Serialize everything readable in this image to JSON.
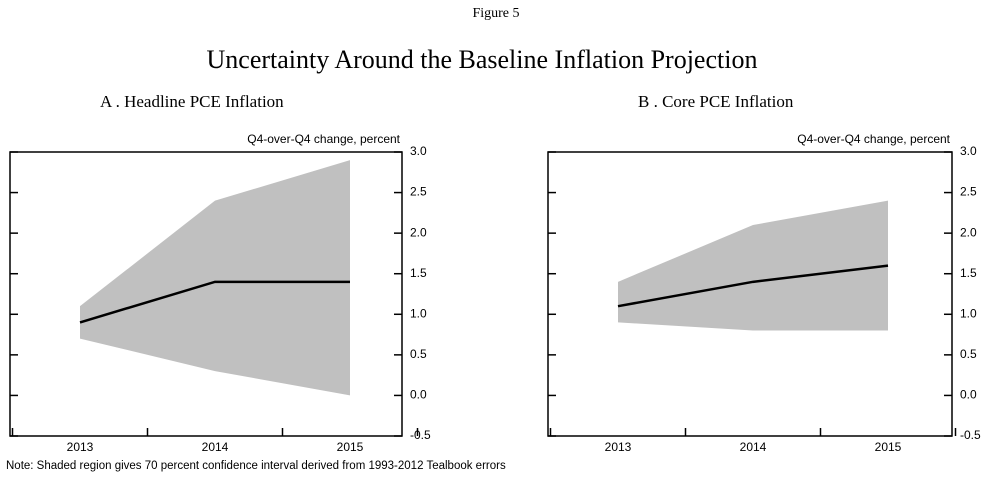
{
  "figure_label": "Figure 5",
  "title": "Uncertainty Around the Baseline Inflation Projection",
  "note": "Note: Shaded region gives 70 percent confidence interval derived from 1993-2012 Tealbook errors",
  "chart_data": [
    {
      "type": "line",
      "title": "A . Headline PCE Inflation",
      "y_label": "Q4-over-Q4 change, percent",
      "categories": [
        "2013",
        "2014",
        "2015"
      ],
      "values": [
        0.9,
        1.4,
        1.4
      ],
      "color": "#000000",
      "band": {
        "lower": [
          0.7,
          0.3,
          0.0
        ],
        "upper": [
          1.1,
          2.4,
          2.9
        ],
        "color": "#c0c0c0"
      },
      "ylim": [
        -0.5,
        3.0
      ],
      "yticks": [
        -0.5,
        {
          "value": 0,
          "label": "0.0"
        },
        0.5,
        {
          "value": 1,
          "label": "1.0"
        },
        1.5,
        {
          "value": 2,
          "label": "2.0"
        },
        2.5,
        {
          "value": 3,
          "label": "3.0"
        }
      ]
    },
    {
      "type": "line",
      "title": "B . Core PCE Inflation",
      "y_label": "Q4-over-Q4 change, percent",
      "categories": [
        "2013",
        "2014",
        "2015"
      ],
      "values": [
        1.1,
        1.4,
        1.6
      ],
      "color": "#000000",
      "band": {
        "lower": [
          0.9,
          0.8,
          0.8
        ],
        "upper": [
          1.4,
          2.1,
          2.4
        ],
        "color": "#c0c0c0"
      },
      "ylim": [
        -0.5,
        3.0
      ],
      "yticks": [
        -0.5,
        {
          "value": 0,
          "label": "0.0"
        },
        0.5,
        {
          "value": 1,
          "label": "1.0"
        },
        1.5,
        {
          "value": 2,
          "label": "2.0"
        },
        2.5,
        {
          "value": 3,
          "label": "3.0"
        }
      ]
    }
  ]
}
